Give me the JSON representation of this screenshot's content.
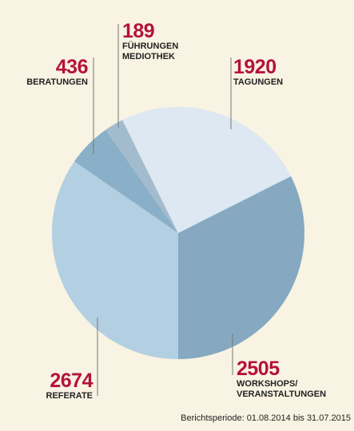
{
  "chart_data": {
    "type": "pie",
    "categories": [
      "REFERATE",
      "BERATUNGEN",
      "FÜHRUNGEN\nMEDIOTHEK",
      "TAGUNGEN",
      "WORKSHOPS/\nVERANSTALTUNGEN"
    ],
    "values": [
      2674,
      436,
      189,
      1920,
      2505
    ],
    "colors": [
      "#b3cfe2",
      "#8aafc8",
      "#a3bccd",
      "#dde8f2",
      "#86a9c1"
    ],
    "footnote": "Berichtsperiode: 01.08.2014 bis 31.07.2015"
  }
}
